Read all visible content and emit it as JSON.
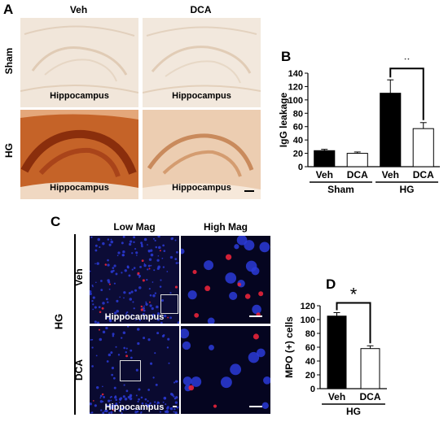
{
  "panel_a": {
    "letter": "A",
    "columns": [
      "Veh",
      "DCA"
    ],
    "rows": [
      "Sham",
      "HG"
    ],
    "tile_caption": "Hippocampus"
  },
  "panel_b": {
    "letter": "B",
    "significance": "*"
  },
  "panel_c": {
    "letter": "C",
    "columns": [
      "Low Mag",
      "High Mag"
    ],
    "group": "HG",
    "rows": [
      "Veh",
      "DCA"
    ],
    "tile_caption": "Hippocampus"
  },
  "panel_d": {
    "letter": "D",
    "significance": "*"
  },
  "chart_data": [
    {
      "type": "bar",
      "panel": "B",
      "categories": [
        "Veh",
        "DCA",
        "Veh",
        "DCA"
      ],
      "groups": [
        {
          "label": "Sham",
          "categories": [
            "Veh",
            "DCA"
          ]
        },
        {
          "label": "HG",
          "categories": [
            "Veh",
            "DCA"
          ]
        }
      ],
      "values": [
        24,
        20,
        110,
        57
      ],
      "errors": [
        2,
        2,
        20,
        9
      ],
      "fills": [
        "#000000",
        "#ffffff",
        "#000000",
        "#ffffff"
      ],
      "ylabel": "IgG leakage",
      "ylim": [
        0,
        140
      ],
      "yticks": [
        0,
        20,
        40,
        60,
        80,
        100,
        120,
        140
      ],
      "significance": {
        "between": [
          2,
          3
        ],
        "label": "*"
      }
    },
    {
      "type": "bar",
      "panel": "D",
      "categories": [
        "Veh",
        "DCA"
      ],
      "groups": [
        {
          "label": "HG",
          "categories": [
            "Veh",
            "DCA"
          ]
        }
      ],
      "values": [
        105,
        58
      ],
      "errors": [
        5,
        4
      ],
      "fills": [
        "#000000",
        "#ffffff"
      ],
      "ylabel": "MPO (+) cells",
      "ylim": [
        0,
        120
      ],
      "yticks": [
        0,
        20,
        40,
        60,
        80,
        100,
        120
      ],
      "significance": {
        "between": [
          0,
          1
        ],
        "label": "*"
      }
    }
  ]
}
